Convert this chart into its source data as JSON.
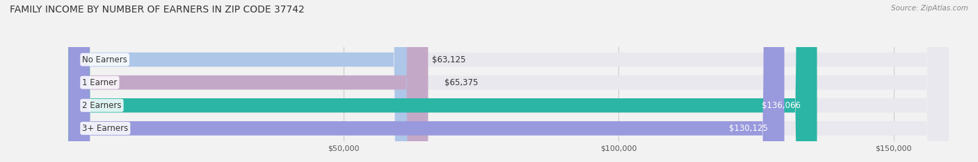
{
  "title": "FAMILY INCOME BY NUMBER OF EARNERS IN ZIP CODE 37742",
  "source": "Source: ZipAtlas.com",
  "categories": [
    "No Earners",
    "1 Earner",
    "2 Earners",
    "3+ Earners"
  ],
  "values": [
    63125,
    65375,
    136066,
    130125
  ],
  "bar_colors": [
    "#aec6e8",
    "#c4a8c8",
    "#2ab5a5",
    "#9999dd"
  ],
  "label_colors": [
    "#333333",
    "#333333",
    "#ffffff",
    "#ffffff"
  ],
  "value_labels": [
    "$63,125",
    "$65,375",
    "$136,066",
    "$130,125"
  ],
  "xlim_min": 0,
  "xlim_max": 160000,
  "xticks": [
    50000,
    100000,
    150000
  ],
  "xtick_labels": [
    "$50,000",
    "$100,000",
    "$150,000"
  ],
  "background_color": "#f2f2f2",
  "bar_background_color": "#e8e8ee",
  "title_fontsize": 10,
  "source_fontsize": 7.5,
  "label_fontsize": 8.5,
  "value_fontsize": 8.5
}
